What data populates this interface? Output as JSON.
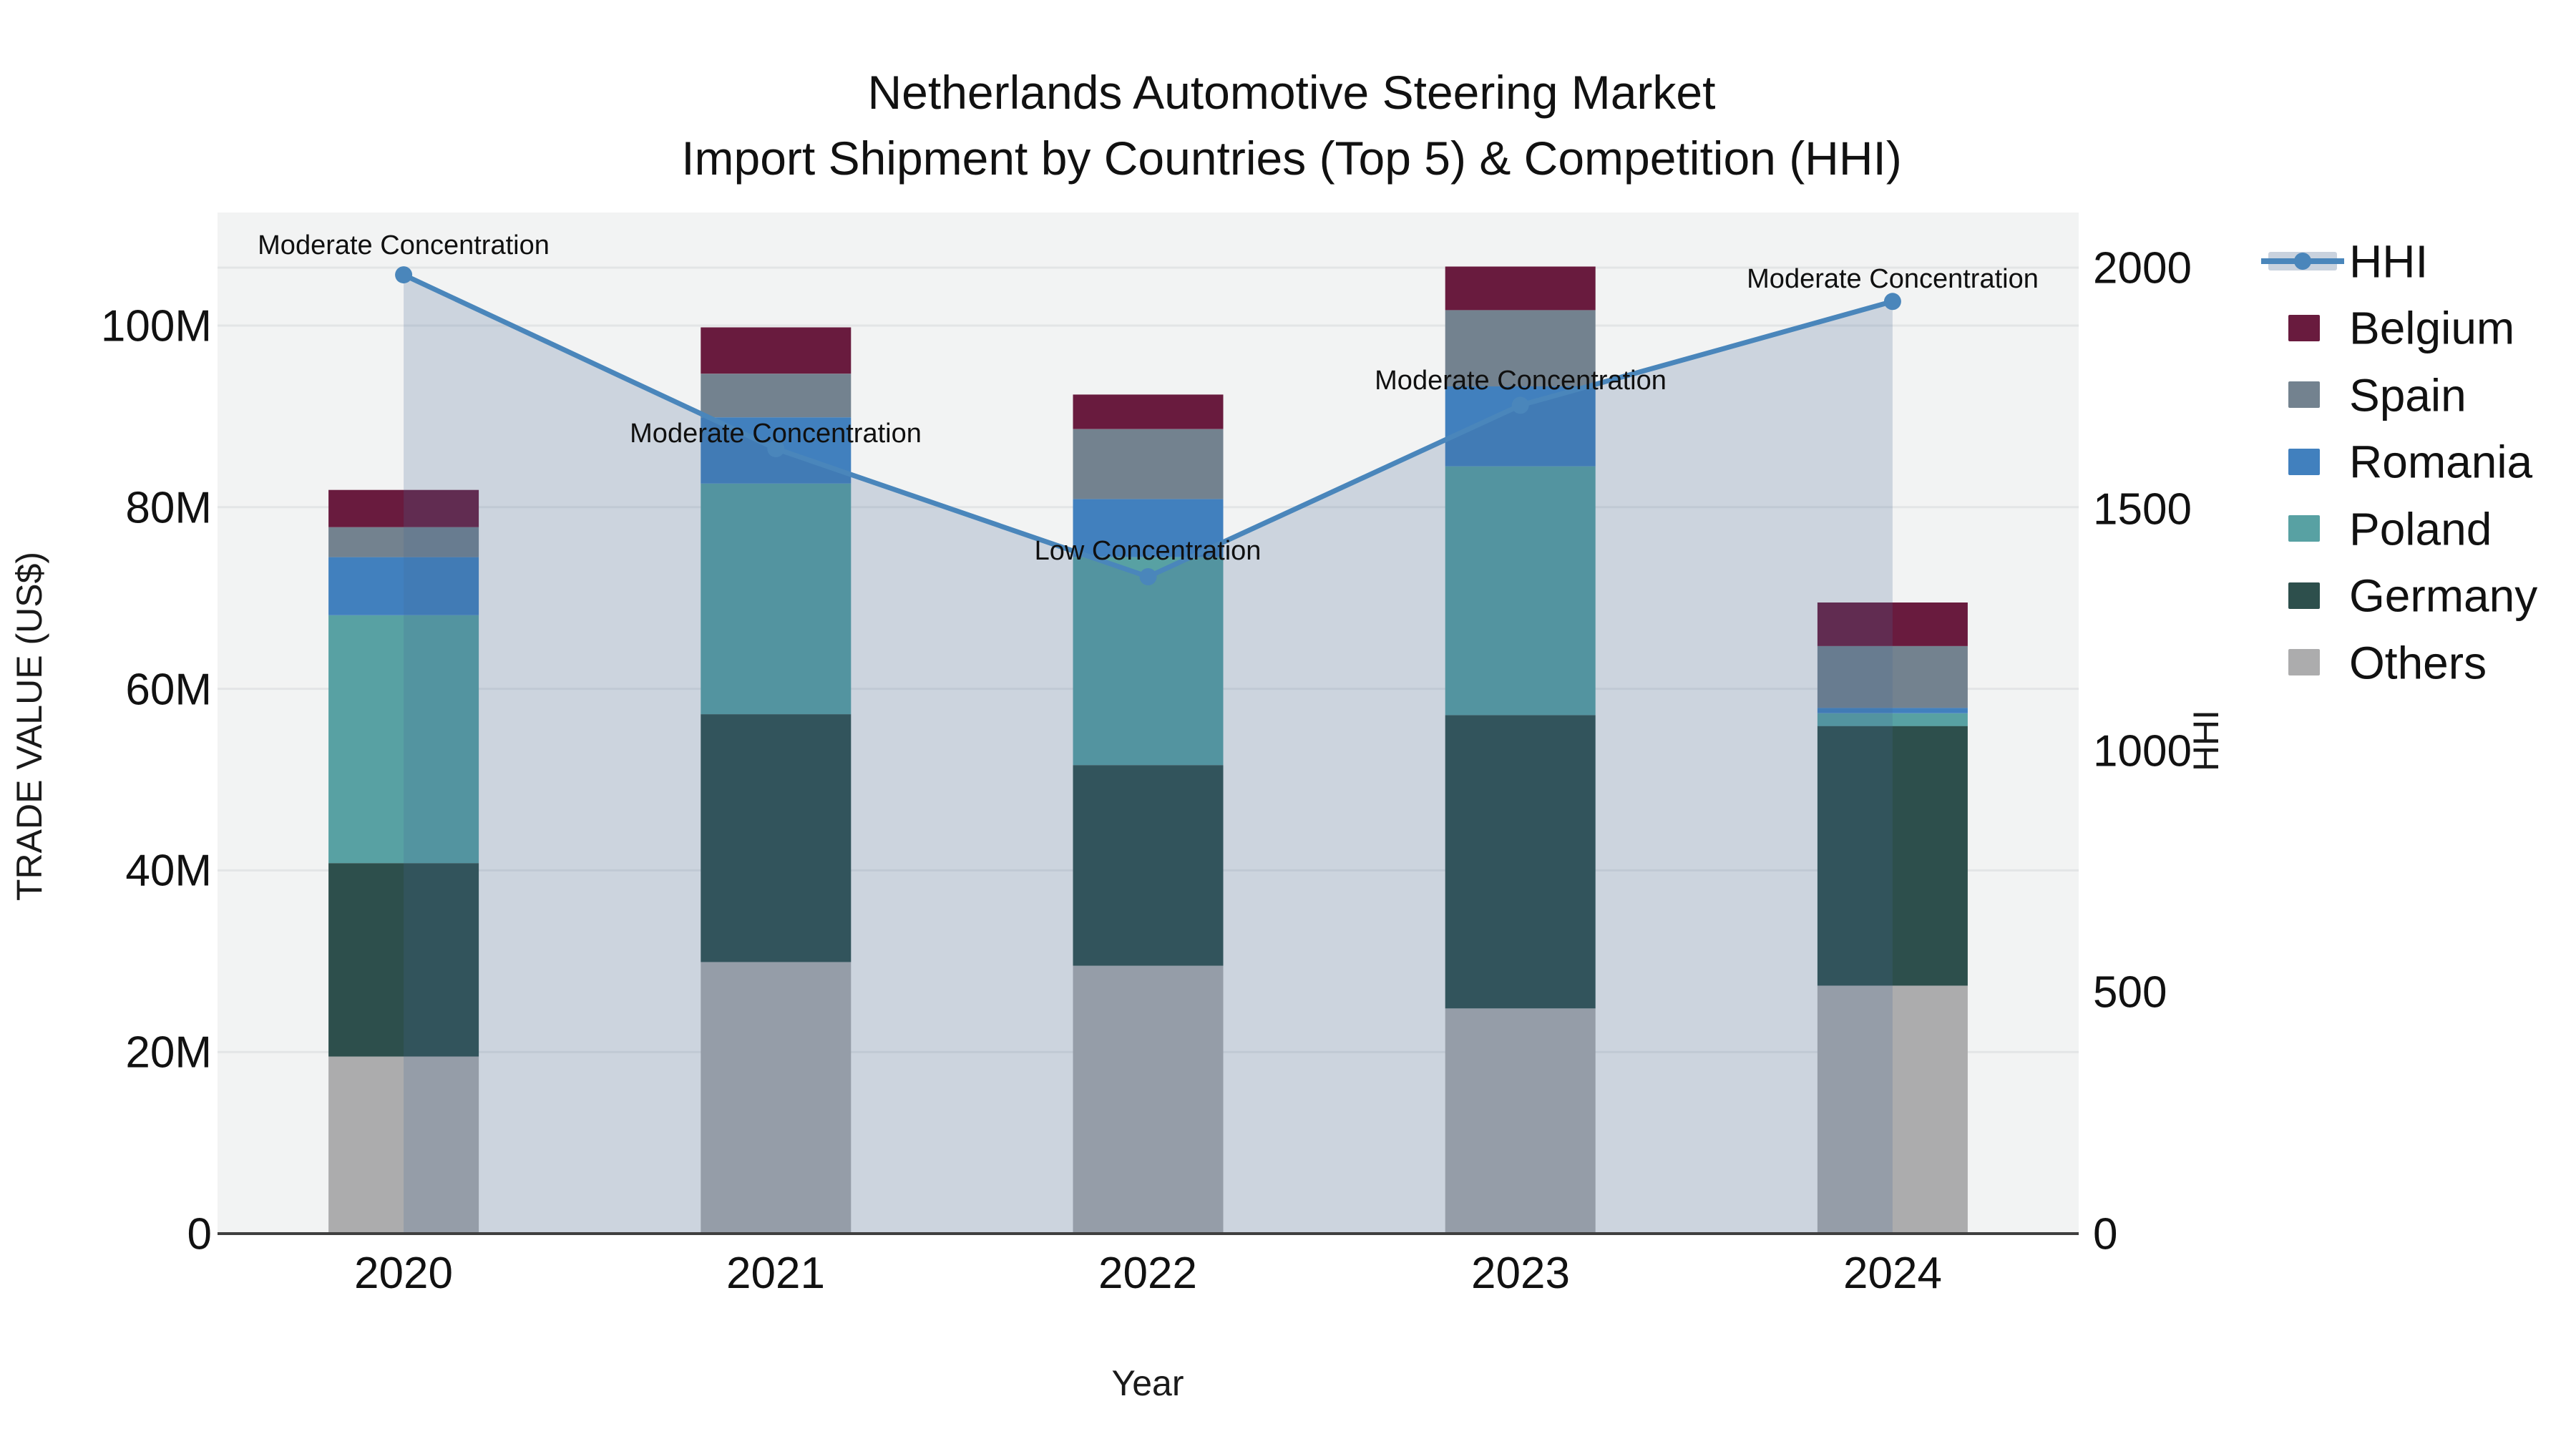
{
  "title": {
    "line1": "Netherlands Automotive Steering Market",
    "line2": "Import Shipment by Countries (Top 5) & Competition (HHI)"
  },
  "axes": {
    "left": {
      "title": "TRADE VALUE (US$)",
      "ticks": [
        "0",
        "20M",
        "40M",
        "60M",
        "80M",
        "100M"
      ]
    },
    "right": {
      "title": "HHI",
      "ticks": [
        "0",
        "500",
        "1000",
        "1500",
        "2000"
      ]
    },
    "x": {
      "title": "Year",
      "ticks": [
        "2020",
        "2021",
        "2022",
        "2023",
        "2024"
      ]
    }
  },
  "legend": {
    "items": [
      {
        "label": "HHI",
        "type": "line_area",
        "line_color": "#4A86BB",
        "area_color": "#C9D2DE"
      },
      {
        "label": "Belgium",
        "type": "square",
        "color": "#691B3E"
      },
      {
        "label": "Spain",
        "type": "square",
        "color": "#73828F"
      },
      {
        "label": "Romania",
        "type": "square",
        "color": "#4180BE"
      },
      {
        "label": "Poland",
        "type": "square",
        "color": "#58A1A3"
      },
      {
        "label": "Germany",
        "type": "square",
        "color": "#2D4F4C"
      },
      {
        "label": "Others",
        "type": "square",
        "color": "#ACACAD"
      }
    ]
  },
  "chart_data": {
    "type": "combo: stacked bar + line",
    "title": "Netherlands Automotive Steering Market — Import Shipment by Countries (Top 5) & Competition (HHI)",
    "x": [
      "2020",
      "2021",
      "2022",
      "2023",
      "2024"
    ],
    "xlabel": "Year",
    "bar_axis": {
      "label": "TRADE VALUE (US$)",
      "units": "millions US$",
      "range": [
        0,
        112
      ],
      "tick_step": 20
    },
    "line_axis": {
      "label": "HHI",
      "range": [
        0,
        2110
      ],
      "tick_step": 500,
      "side": "right"
    },
    "bar_series_bottom_to_top": [
      {
        "name": "Others",
        "color": "#ACACAD",
        "values": [
          19.5,
          29.9,
          29.5,
          24.8,
          27.3
        ]
      },
      {
        "name": "Germany",
        "color": "#2D4F4C",
        "values": [
          21.3,
          27.3,
          22.1,
          32.3,
          28.6
        ]
      },
      {
        "name": "Poland",
        "color": "#58A1A3",
        "values": [
          27.3,
          25.4,
          22.9,
          27.4,
          1.4
        ]
      },
      {
        "name": "Romania",
        "color": "#4180BE",
        "values": [
          6.4,
          7.3,
          6.4,
          8.8,
          0.6
        ]
      },
      {
        "name": "Spain",
        "color": "#73828F",
        "values": [
          3.3,
          4.8,
          7.7,
          8.4,
          6.8
        ]
      },
      {
        "name": "Belgium",
        "color": "#691B3E",
        "values": [
          4.1,
          5.1,
          3.8,
          4.8,
          4.8
        ]
      }
    ],
    "bar_totals": [
      81.9,
      99.8,
      92.4,
      106.5,
      69.5
    ],
    "line_series": {
      "name": "HHI",
      "color": "#4A86BB",
      "fill_color": "rgba(70,105,150,0.22)",
      "marker": "circle",
      "values": [
        1985,
        1625,
        1360,
        1715,
        1930
      ]
    },
    "annotations": [
      {
        "x": "2020",
        "text": "Moderate Concentration"
      },
      {
        "x": "2021",
        "text": "Moderate Concentration"
      },
      {
        "x": "2022",
        "text": "Low Concentration"
      },
      {
        "x": "2023",
        "text": "Moderate Concentration"
      },
      {
        "x": "2024",
        "text": "Moderate Concentration"
      }
    ],
    "grid": true,
    "plot_background": "#F2F3F3",
    "legend_position": "right"
  }
}
